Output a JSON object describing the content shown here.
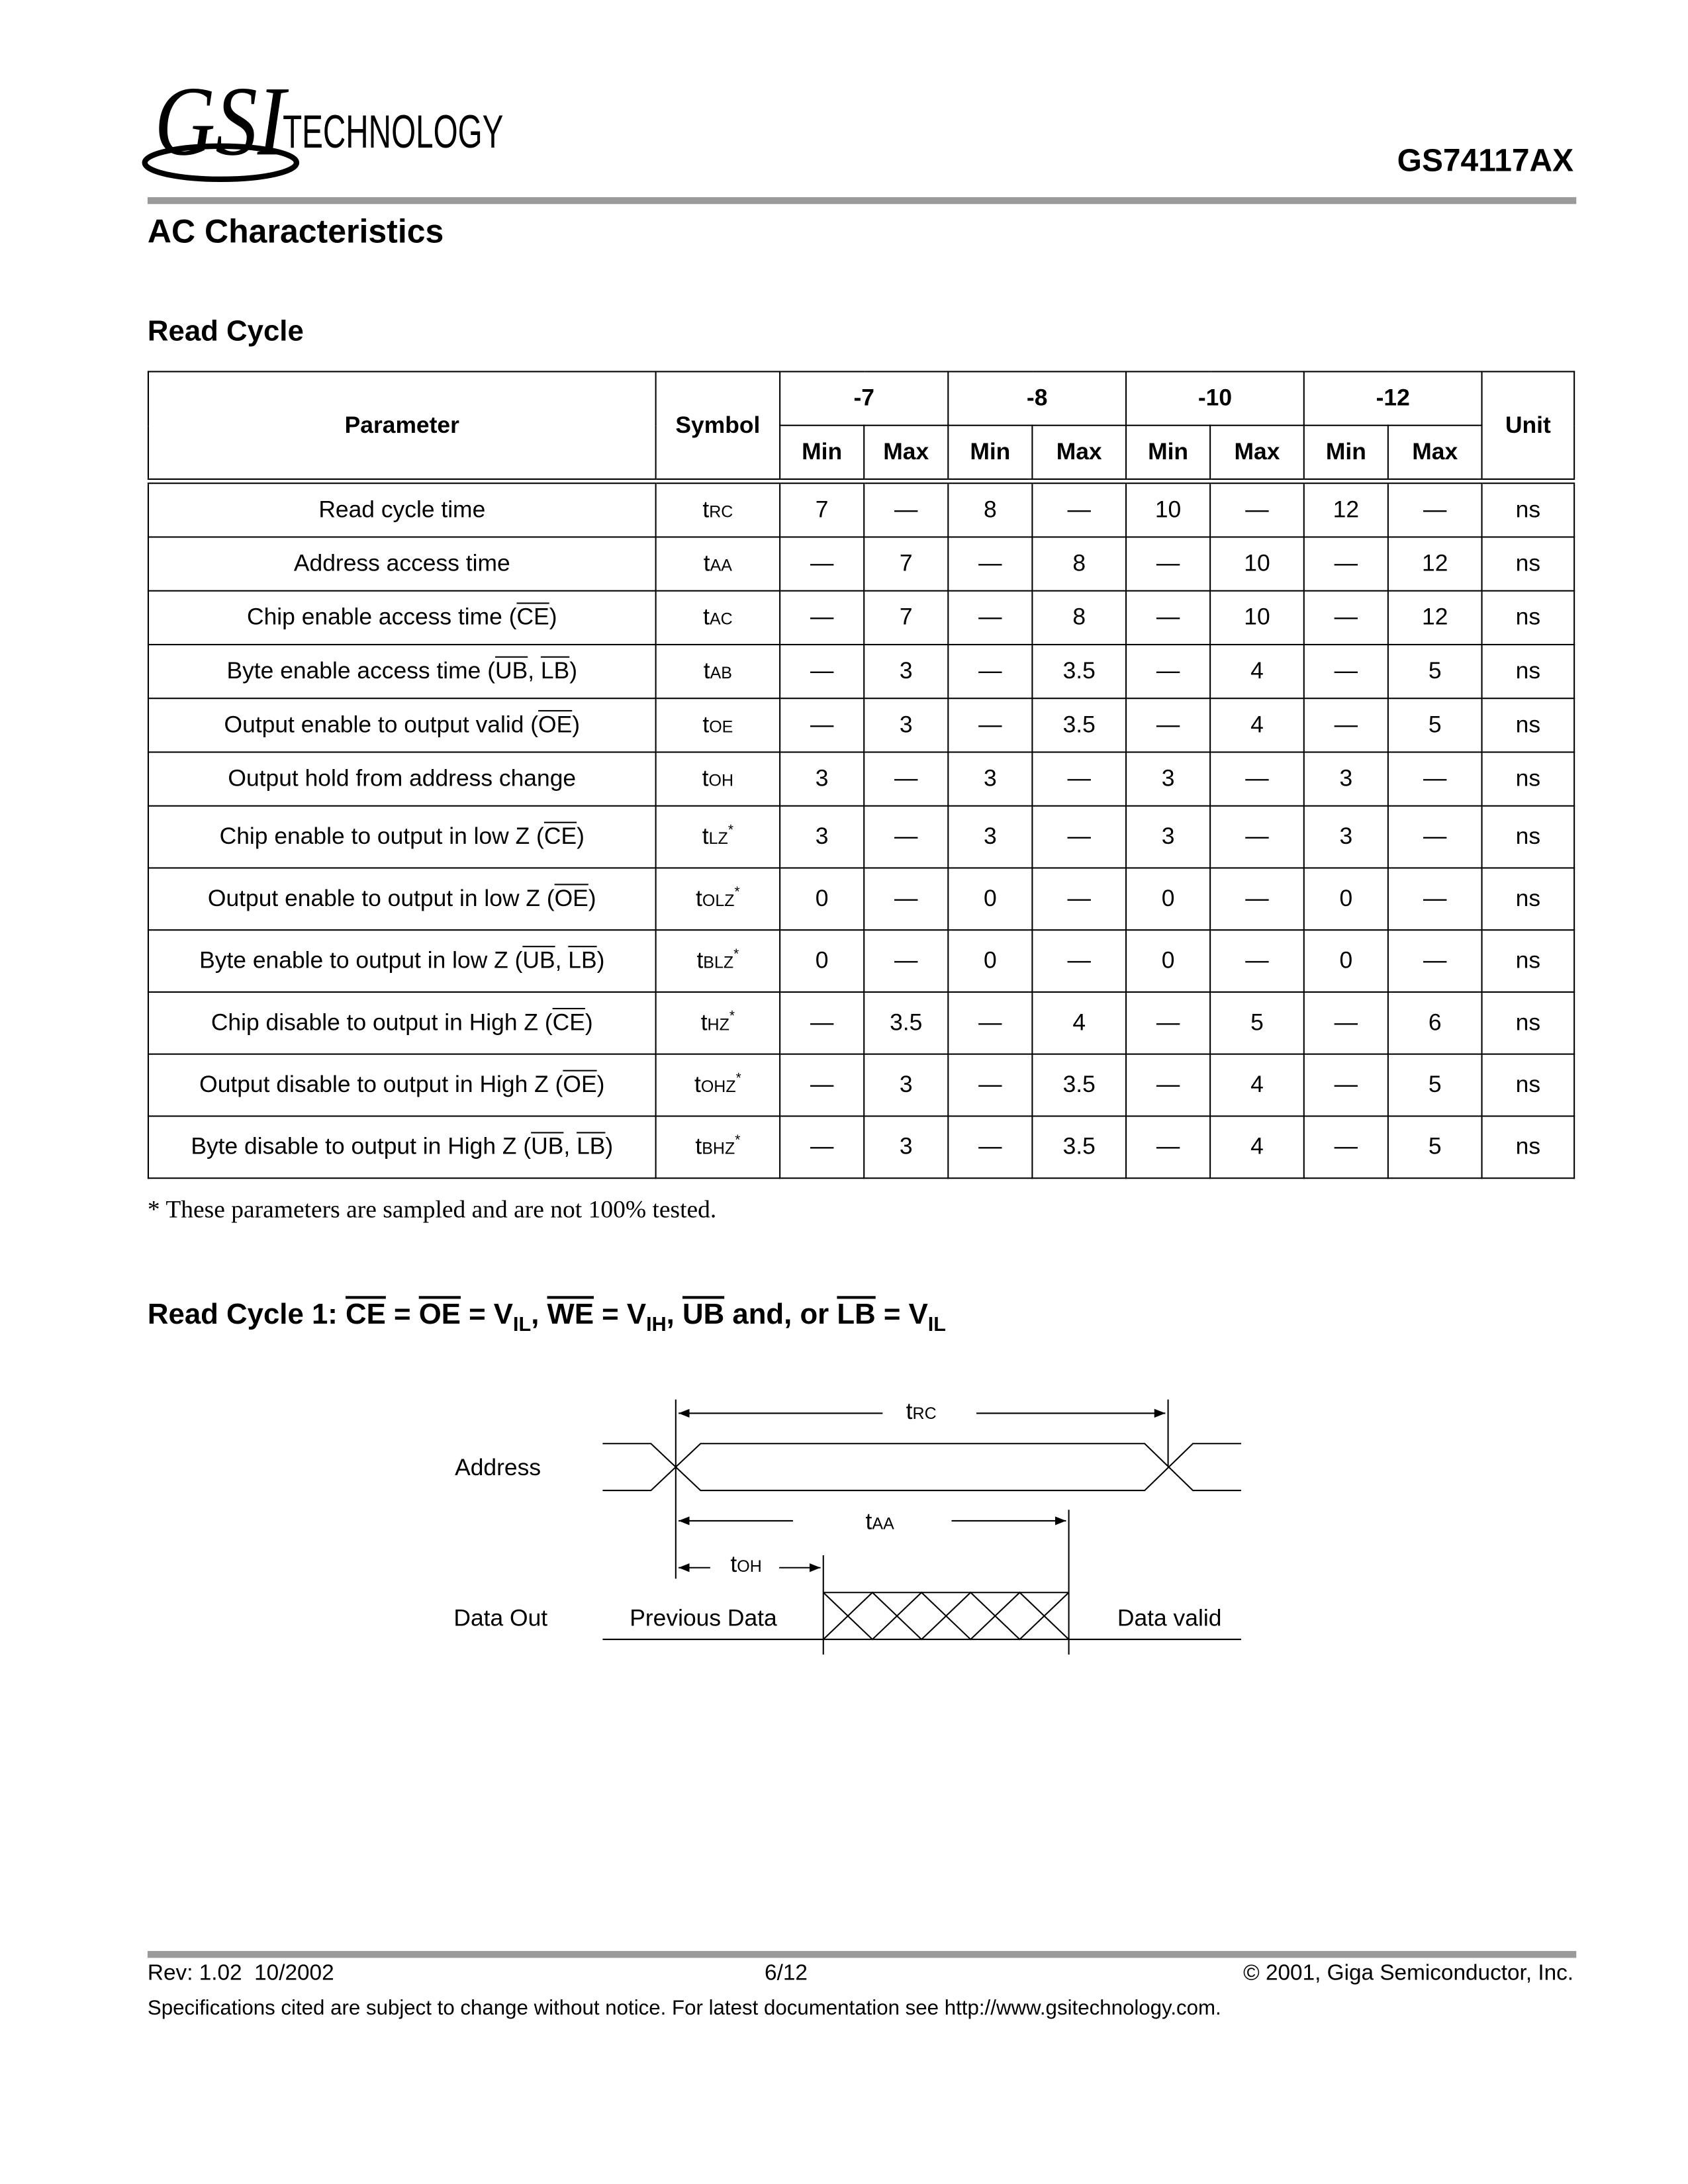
{
  "header": {
    "logo_mark": "GSI",
    "logo_text": "TECHNOLOGY",
    "part_number": "GS74117AX"
  },
  "section_title": "AC Characteristics",
  "subsection_title": "Read Cycle",
  "table": {
    "header": {
      "parameter": "Parameter",
      "symbol": "Symbol",
      "groups": [
        "-7",
        "-8",
        "-10",
        "-12"
      ],
      "sub": [
        "Min",
        "Max"
      ],
      "unit": "Unit"
    },
    "rows": [
      {
        "parameter": [
          {
            "text": "Read cycle time"
          }
        ],
        "symbol": {
          "t": "t",
          "sub": "RC"
        },
        "values": [
          7,
          "—",
          8,
          "—",
          10,
          "—",
          12,
          "—"
        ],
        "unit": "ns"
      },
      {
        "parameter": [
          {
            "text": "Address access time"
          }
        ],
        "symbol": {
          "t": "t",
          "sub": "AA"
        },
        "values": [
          "—",
          7,
          "—",
          8,
          "—",
          10,
          "—",
          12
        ],
        "unit": "ns"
      },
      {
        "parameter": [
          {
            "text": "Chip enable access time ("
          },
          {
            "text": "CE",
            "overline": true
          },
          {
            "text": ")"
          }
        ],
        "symbol": {
          "t": "t",
          "sub": "AC"
        },
        "values": [
          "—",
          7,
          "—",
          8,
          "—",
          10,
          "—",
          12
        ],
        "unit": "ns"
      },
      {
        "parameter": [
          {
            "text": "Byte enable access time ("
          },
          {
            "text": "UB",
            "overline": true
          },
          {
            "text": ", "
          },
          {
            "text": "LB",
            "overline": true
          },
          {
            "text": ")"
          }
        ],
        "symbol": {
          "t": "t",
          "sub": "AB"
        },
        "values": [
          "—",
          3,
          "—",
          3.5,
          "—",
          4,
          "—",
          5
        ],
        "unit": "ns"
      },
      {
        "parameter": [
          {
            "text": "Output enable to output valid ("
          },
          {
            "text": "OE",
            "overline": true
          },
          {
            "text": ")"
          }
        ],
        "symbol": {
          "t": "t",
          "sub": "OE"
        },
        "values": [
          "—",
          3,
          "—",
          3.5,
          "—",
          4,
          "—",
          5
        ],
        "unit": "ns"
      },
      {
        "parameter": [
          {
            "text": "Output hold from address change"
          }
        ],
        "symbol": {
          "t": "t",
          "sub": "OH"
        },
        "values": [
          3,
          "—",
          3,
          "—",
          3,
          "—",
          3,
          "—"
        ],
        "unit": "ns"
      },
      {
        "parameter": [
          {
            "text": "Chip enable to output in low Z ("
          },
          {
            "text": "CE",
            "overline": true
          },
          {
            "text": ")"
          }
        ],
        "symbol": {
          "t": "t",
          "sub": "LZ",
          "note": "*"
        },
        "values": [
          3,
          "—",
          3,
          "—",
          3,
          "—",
          3,
          "—"
        ],
        "unit": "ns"
      },
      {
        "parameter": [
          {
            "text": "Output enable to output in low Z ("
          },
          {
            "text": "OE",
            "overline": true
          },
          {
            "text": ")"
          }
        ],
        "symbol": {
          "t": "t",
          "sub": "OLZ",
          "note": "*"
        },
        "values": [
          0,
          "—",
          0,
          "—",
          0,
          "—",
          0,
          "—"
        ],
        "unit": "ns"
      },
      {
        "parameter": [
          {
            "text": "Byte enable to output in low Z ("
          },
          {
            "text": "UB",
            "overline": true
          },
          {
            "text": ", "
          },
          {
            "text": "LB",
            "overline": true
          },
          {
            "text": ")"
          }
        ],
        "symbol": {
          "t": "t",
          "sub": "BLZ",
          "note": "*"
        },
        "values": [
          0,
          "—",
          0,
          "—",
          0,
          "—",
          0,
          "—"
        ],
        "unit": "ns"
      },
      {
        "parameter": [
          {
            "text": "Chip disable to output in High Z ("
          },
          {
            "text": "CE",
            "overline": true
          },
          {
            "text": ")"
          }
        ],
        "symbol": {
          "t": "t",
          "sub": "HZ",
          "note": "*"
        },
        "values": [
          "—",
          3.5,
          "—",
          4,
          "—",
          5,
          "—",
          6
        ],
        "unit": "ns"
      },
      {
        "parameter": [
          {
            "text": "Output disable to output in High Z ("
          },
          {
            "text": "OE",
            "overline": true
          },
          {
            "text": ")"
          }
        ],
        "symbol": {
          "t": "t",
          "sub": "OHZ",
          "note": "*"
        },
        "values": [
          "—",
          3,
          "—",
          3.5,
          "—",
          4,
          "—",
          5
        ],
        "unit": "ns"
      },
      {
        "parameter": [
          {
            "text": "Byte disable to output in High Z ("
          },
          {
            "text": "UB",
            "overline": true
          },
          {
            "text": ", "
          },
          {
            "text": "LB",
            "overline": true
          },
          {
            "text": ")"
          }
        ],
        "symbol": {
          "t": "t",
          "sub": "BHZ",
          "note": "*"
        },
        "values": [
          "—",
          3,
          "—",
          3.5,
          "—",
          4,
          "—",
          5
        ],
        "unit": "ns"
      }
    ],
    "footnote": "* These parameters are sampled and are not 100% tested."
  },
  "diagram": {
    "title": [
      {
        "text": "Read Cycle 1: "
      },
      {
        "text": "CE",
        "overline": true
      },
      {
        "text": " = "
      },
      {
        "text": "OE",
        "overline": true
      },
      {
        "text": " = V"
      },
      {
        "text": "IL",
        "subscript": true
      },
      {
        "text": ", "
      },
      {
        "text": "WE",
        "overline": true
      },
      {
        "text": " = V"
      },
      {
        "text": "IH",
        "subscript": true
      },
      {
        "text": ", "
      },
      {
        "text": "UB",
        "overline": true
      },
      {
        "text": " and, or "
      },
      {
        "text": "LB",
        "overline": true
      },
      {
        "text": " = V"
      },
      {
        "text": "IL",
        "subscript": true
      }
    ],
    "signals": [
      "Address",
      "Data Out"
    ],
    "states": [
      "Previous Data",
      "Data valid"
    ],
    "timings": [
      {
        "t": "t",
        "sub": "RC"
      },
      {
        "t": "t",
        "sub": "AA"
      },
      {
        "t": "t",
        "sub": "OH"
      }
    ]
  },
  "footer": {
    "revision": "Rev: 1.02  10/2002",
    "page": "6/12",
    "copyright": "© 2001, Giga Semiconductor, Inc.",
    "note": "Specifications cited are subject to change without notice. For latest documentation see http://www.gsitechnology.com."
  }
}
